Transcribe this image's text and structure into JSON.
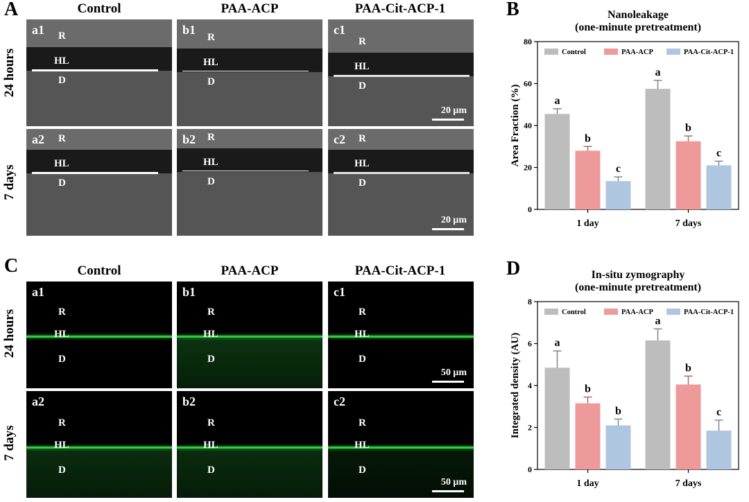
{
  "panels": {
    "A": {
      "letter": "A",
      "columns": [
        "Control",
        "PAA-ACP",
        "PAA-Cit-ACP-1"
      ],
      "rows": [
        "24 hours",
        "7 days"
      ],
      "tiles": [
        [
          "a1",
          "b1",
          "c1"
        ],
        [
          "a2",
          "b2",
          "c2"
        ]
      ],
      "zones": {
        "resin": "R",
        "hybrid": "HL",
        "dentin": "D"
      },
      "scale": "20 μm"
    },
    "C": {
      "letter": "C",
      "columns": [
        "Control",
        "PAA-ACP",
        "PAA-Cit-ACP-1"
      ],
      "rows": [
        "24 hours",
        "7 days"
      ],
      "tiles": [
        [
          "a1",
          "b1",
          "c1"
        ],
        [
          "a2",
          "b2",
          "c2"
        ]
      ],
      "zones": {
        "resin": "R",
        "hybrid": "HL",
        "dentin": "D"
      },
      "scale": "50 μm"
    },
    "B": {
      "letter": "B"
    },
    "D": {
      "letter": "D"
    }
  },
  "colors": {
    "Control": "#bdbdbd",
    "PAA-ACP": "#ef9a9a",
    "PAA-Cit-ACP-1": "#aec6e0",
    "sem_background": "#555555",
    "fluorescence": "#2ecc40"
  },
  "chart_data": [
    {
      "type": "bar",
      "title": "Nanoleakage",
      "subtitle": "(one-minute pretreatment)",
      "xlabel": "",
      "ylabel": "Area Fraction (%)",
      "ylim": [
        0,
        80
      ],
      "yticks": [
        0,
        20,
        40,
        60,
        80
      ],
      "categories": [
        "1 day",
        "7 days"
      ],
      "legend_position": "top",
      "series": [
        {
          "name": "Control",
          "values": [
            45.5,
            57.5
          ],
          "errors": [
            2.5,
            4.0
          ],
          "labels": [
            "a",
            "a"
          ]
        },
        {
          "name": "PAA-ACP",
          "values": [
            28.0,
            32.5
          ],
          "errors": [
            2.0,
            2.5
          ],
          "labels": [
            "b",
            "b"
          ]
        },
        {
          "name": "PAA-Cit-ACP-1",
          "values": [
            13.5,
            21.0
          ],
          "errors": [
            2.0,
            2.0
          ],
          "labels": [
            "c",
            "c"
          ]
        }
      ]
    },
    {
      "type": "bar",
      "title": "In-situ zymography",
      "subtitle": "(one-minute pretreatment)",
      "xlabel": "",
      "ylabel": "Integrated density (AU)",
      "ylim": [
        0,
        8
      ],
      "yticks": [
        0,
        2,
        4,
        6,
        8
      ],
      "categories": [
        "1 day",
        "7 days"
      ],
      "legend_position": "top",
      "series": [
        {
          "name": "Control",
          "values": [
            4.85,
            6.15
          ],
          "errors": [
            0.8,
            0.55
          ],
          "labels": [
            "a",
            "a"
          ]
        },
        {
          "name": "PAA-ACP",
          "values": [
            3.15,
            4.05
          ],
          "errors": [
            0.3,
            0.4
          ],
          "labels": [
            "b",
            "b"
          ]
        },
        {
          "name": "PAA-Cit-ACP-1",
          "values": [
            2.1,
            1.85
          ],
          "errors": [
            0.3,
            0.5
          ],
          "labels": [
            "b",
            "c"
          ]
        }
      ]
    }
  ]
}
